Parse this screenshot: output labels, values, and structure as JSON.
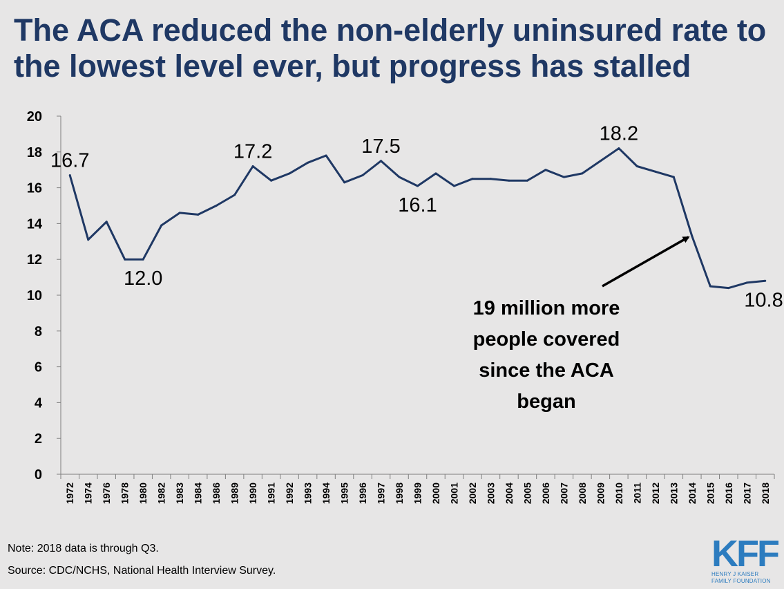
{
  "header": {
    "title_line1": "The ACA reduced the non-elderly uninsured rate to",
    "title_line2": "the lowest level ever, but progress has stalled"
  },
  "footer": {
    "note": "Note: 2018 data is through Q3.",
    "source": "Source: CDC/NCHS, National Health Interview Survey."
  },
  "logo": {
    "mark": "KFF",
    "line1": "HENRY J KAISER",
    "line2": "FAMILY FOUNDATION"
  },
  "colors": {
    "line": "#1f3864",
    "title": "#1f3864",
    "logo": "#2c7cbf",
    "background": "#e7e6e6",
    "axis": "#7f7f7f"
  },
  "chart_data": {
    "type": "line",
    "title": "",
    "xlabel": "",
    "ylabel": "",
    "ylim": [
      0,
      20
    ],
    "yticks": [
      0,
      2,
      4,
      6,
      8,
      10,
      12,
      14,
      16,
      18,
      20
    ],
    "grid": false,
    "categories": [
      "1972",
      "1974",
      "1976",
      "1978",
      "1980",
      "1982",
      "1983",
      "1984",
      "1986",
      "1989",
      "1990",
      "1991",
      "1992",
      "1993",
      "1994",
      "1995",
      "1996",
      "1997",
      "1998",
      "1999",
      "2000",
      "2001",
      "2002",
      "2003",
      "2004",
      "2005",
      "2006",
      "2007",
      "2008",
      "2009",
      "2010",
      "2011",
      "2012",
      "2013",
      "2014",
      "2015",
      "2016",
      "2017",
      "2018"
    ],
    "series": [
      {
        "name": "Non-elderly uninsured rate (%)",
        "values": [
          16.7,
          13.1,
          14.1,
          12.0,
          12.0,
          13.9,
          14.6,
          14.5,
          15.0,
          15.6,
          17.2,
          16.4,
          16.8,
          17.4,
          17.8,
          16.3,
          16.7,
          17.5,
          16.6,
          16.1,
          16.8,
          16.1,
          16.5,
          16.5,
          16.4,
          16.4,
          17.0,
          16.6,
          16.8,
          17.5,
          18.2,
          17.2,
          16.9,
          16.6,
          13.3,
          10.5,
          10.4,
          10.7,
          10.8
        ]
      }
    ],
    "data_labels": [
      {
        "index": 0,
        "text": "16.7",
        "anchor": "middle",
        "side": "above"
      },
      {
        "index": 4,
        "text": "12.0",
        "anchor": "middle",
        "side": "below"
      },
      {
        "index": 10,
        "text": "17.2",
        "anchor": "middle",
        "side": "above"
      },
      {
        "index": 17,
        "text": "17.5",
        "anchor": "middle",
        "side": "above"
      },
      {
        "index": 19,
        "text": "16.1",
        "anchor": "middle",
        "side": "below"
      },
      {
        "index": 30,
        "text": "18.2",
        "anchor": "middle",
        "side": "above"
      },
      {
        "index": 38,
        "text": "10.8",
        "anchor": "end",
        "side": "below"
      }
    ],
    "annotation": {
      "lines": [
        "19 million more",
        "people covered",
        "since the ACA",
        "began"
      ],
      "arrow_target_index": 34
    }
  }
}
